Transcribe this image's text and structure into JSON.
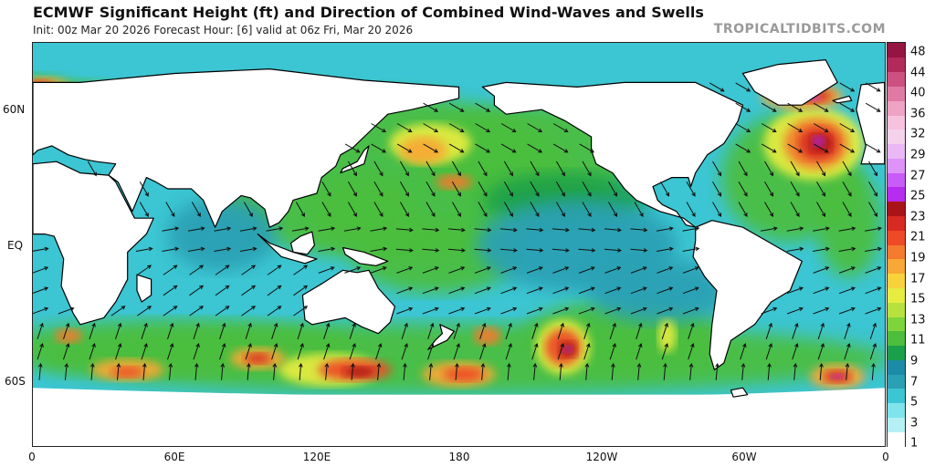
{
  "header": {
    "title": "ECMWF Significant Height (ft) and Direction of Combined Wind-Waves and Swells",
    "subtitle": "Init: 00z Mar 20 2026   Forecast Hour: [6]   valid at 06z Fri, Mar 20 2026",
    "credit": "TROPICALTIDBITS.COM"
  },
  "map": {
    "lat_labels": [
      "60N",
      "EQ",
      "60S"
    ],
    "lon_labels": [
      "0",
      "60E",
      "120E",
      "180",
      "120W",
      "60W",
      "0"
    ],
    "land_color": "#ffffff",
    "coast_color": "#000000"
  },
  "colorbar": {
    "labels": [
      "48",
      "44",
      "40",
      "36",
      "32",
      "29",
      "27",
      "25",
      "23",
      "21",
      "19",
      "17",
      "15",
      "13",
      "11",
      "9",
      "7",
      "5",
      "3",
      "1"
    ],
    "colors": [
      "#ffffff",
      "#b5f0f4",
      "#7fe4ec",
      "#3cc5d2",
      "#2aa0b4",
      "#1b8ca8",
      "#1aa04a",
      "#4cbe3c",
      "#7ed43c",
      "#b6e23e",
      "#e6ec40",
      "#f7d23a",
      "#f7a836",
      "#f47a2e",
      "#ee4a26",
      "#d72a22",
      "#a81418",
      "#b62cf0",
      "#c85cf8",
      "#dc94f8",
      "#eab8f4",
      "#f5d2ec",
      "#f7c2de",
      "#eea2c4",
      "#e07aa4",
      "#cc5080",
      "#b22a5a",
      "#941442"
    ]
  },
  "features": {
    "storms": [
      {
        "name": "north-atlantic-low",
        "lon": -28,
        "lat": 45,
        "peak_ft": 25
      },
      {
        "name": "south-pacific-low",
        "lon": -136,
        "lat": -45,
        "peak_ft": 23
      },
      {
        "name": "south-atlantic-low",
        "lon": -20,
        "lat": -58,
        "peak_ft": 23
      },
      {
        "name": "greenland-sea-high-waves",
        "lon": -30,
        "lat": 65,
        "peak_ft": 25
      }
    ]
  }
}
